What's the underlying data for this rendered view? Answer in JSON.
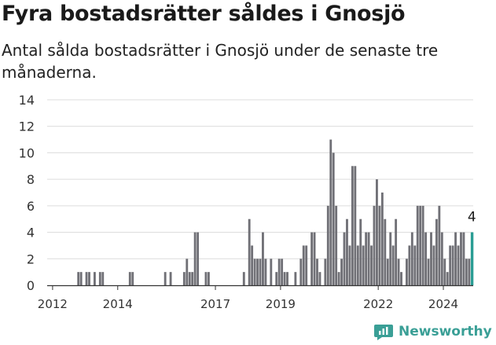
{
  "title": "Fyra bostadsrätter såldes i Gnosjö",
  "subtitle": "Antal sålda bostadsrätter i Gnosjö under de senaste tre månaderna.",
  "brand": {
    "name": "Newsworthy",
    "icon": "newsworthy-logo-icon"
  },
  "colors": {
    "bar": "#707076",
    "highlight": "#2a9d94",
    "grid": "#dcdcdc",
    "axis": "#333333",
    "brand": "#3a9f96"
  },
  "chart_data": {
    "type": "bar",
    "x_unit": "month",
    "x_start": "2011-11",
    "x_end": "2024-11",
    "xticks": [
      "2012",
      "2014",
      "2017",
      "2019",
      "2022",
      "2024"
    ],
    "yticks": [
      0,
      2,
      4,
      6,
      8,
      10,
      12,
      14
    ],
    "ylim": [
      0,
      14
    ],
    "grid": true,
    "highlight": {
      "month": "2024-11",
      "value": 4,
      "label": "4"
    },
    "series": [
      {
        "values": [
          {
            "m": "2012-10",
            "v": 1
          },
          {
            "m": "2012-11",
            "v": 1
          },
          {
            "m": "2013-01",
            "v": 1
          },
          {
            "m": "2013-02",
            "v": 1
          },
          {
            "m": "2013-04",
            "v": 1
          },
          {
            "m": "2013-06",
            "v": 1
          },
          {
            "m": "2013-07",
            "v": 1
          },
          {
            "m": "2014-05",
            "v": 1
          },
          {
            "m": "2014-06",
            "v": 1
          },
          {
            "m": "2015-06",
            "v": 1
          },
          {
            "m": "2015-08",
            "v": 1
          },
          {
            "m": "2016-01",
            "v": 1
          },
          {
            "m": "2016-02",
            "v": 2
          },
          {
            "m": "2016-03",
            "v": 1
          },
          {
            "m": "2016-04",
            "v": 1
          },
          {
            "m": "2016-05",
            "v": 4
          },
          {
            "m": "2016-06",
            "v": 4
          },
          {
            "m": "2016-09",
            "v": 1
          },
          {
            "m": "2016-10",
            "v": 1
          },
          {
            "m": "2017-11",
            "v": 1
          },
          {
            "m": "2018-01",
            "v": 5
          },
          {
            "m": "2018-02",
            "v": 3
          },
          {
            "m": "2018-03",
            "v": 2
          },
          {
            "m": "2018-04",
            "v": 2
          },
          {
            "m": "2018-05",
            "v": 2
          },
          {
            "m": "2018-06",
            "v": 4
          },
          {
            "m": "2018-07",
            "v": 2
          },
          {
            "m": "2018-09",
            "v": 2
          },
          {
            "m": "2018-11",
            "v": 1
          },
          {
            "m": "2018-12",
            "v": 2
          },
          {
            "m": "2019-01",
            "v": 2
          },
          {
            "m": "2019-02",
            "v": 1
          },
          {
            "m": "2019-03",
            "v": 1
          },
          {
            "m": "2019-06",
            "v": 1
          },
          {
            "m": "2019-08",
            "v": 2
          },
          {
            "m": "2019-09",
            "v": 3
          },
          {
            "m": "2019-10",
            "v": 3
          },
          {
            "m": "2019-12",
            "v": 4
          },
          {
            "m": "2020-01",
            "v": 4
          },
          {
            "m": "2020-02",
            "v": 2
          },
          {
            "m": "2020-03",
            "v": 1
          },
          {
            "m": "2020-05",
            "v": 2
          },
          {
            "m": "2020-06",
            "v": 6
          },
          {
            "m": "2020-07",
            "v": 11
          },
          {
            "m": "2020-08",
            "v": 10
          },
          {
            "m": "2020-09",
            "v": 6
          },
          {
            "m": "2020-10",
            "v": 1
          },
          {
            "m": "2020-11",
            "v": 2
          },
          {
            "m": "2020-12",
            "v": 4
          },
          {
            "m": "2021-01",
            "v": 5
          },
          {
            "m": "2021-02",
            "v": 3
          },
          {
            "m": "2021-03",
            "v": 9
          },
          {
            "m": "2021-04",
            "v": 9
          },
          {
            "m": "2021-05",
            "v": 3
          },
          {
            "m": "2021-06",
            "v": 5
          },
          {
            "m": "2021-07",
            "v": 3
          },
          {
            "m": "2021-08",
            "v": 4
          },
          {
            "m": "2021-09",
            "v": 4
          },
          {
            "m": "2021-10",
            "v": 3
          },
          {
            "m": "2021-11",
            "v": 6
          },
          {
            "m": "2021-12",
            "v": 8
          },
          {
            "m": "2022-01",
            "v": 6
          },
          {
            "m": "2022-02",
            "v": 7
          },
          {
            "m": "2022-03",
            "v": 5
          },
          {
            "m": "2022-04",
            "v": 2
          },
          {
            "m": "2022-05",
            "v": 4
          },
          {
            "m": "2022-06",
            "v": 3
          },
          {
            "m": "2022-07",
            "v": 5
          },
          {
            "m": "2022-08",
            "v": 2
          },
          {
            "m": "2022-09",
            "v": 1
          },
          {
            "m": "2022-11",
            "v": 2
          },
          {
            "m": "2022-12",
            "v": 3
          },
          {
            "m": "2023-01",
            "v": 4
          },
          {
            "m": "2023-02",
            "v": 3
          },
          {
            "m": "2023-03",
            "v": 6
          },
          {
            "m": "2023-04",
            "v": 6
          },
          {
            "m": "2023-05",
            "v": 6
          },
          {
            "m": "2023-06",
            "v": 4
          },
          {
            "m": "2023-07",
            "v": 2
          },
          {
            "m": "2023-08",
            "v": 4
          },
          {
            "m": "2023-09",
            "v": 3
          },
          {
            "m": "2023-10",
            "v": 5
          },
          {
            "m": "2023-11",
            "v": 6
          },
          {
            "m": "2023-12",
            "v": 4
          },
          {
            "m": "2024-01",
            "v": 2
          },
          {
            "m": "2024-02",
            "v": 1
          },
          {
            "m": "2024-03",
            "v": 3
          },
          {
            "m": "2024-04",
            "v": 3
          },
          {
            "m": "2024-05",
            "v": 4
          },
          {
            "m": "2024-06",
            "v": 3
          },
          {
            "m": "2024-07",
            "v": 4
          },
          {
            "m": "2024-08",
            "v": 4
          },
          {
            "m": "2024-09",
            "v": 2
          },
          {
            "m": "2024-10",
            "v": 2
          },
          {
            "m": "2024-11",
            "v": 4
          }
        ]
      }
    ]
  }
}
